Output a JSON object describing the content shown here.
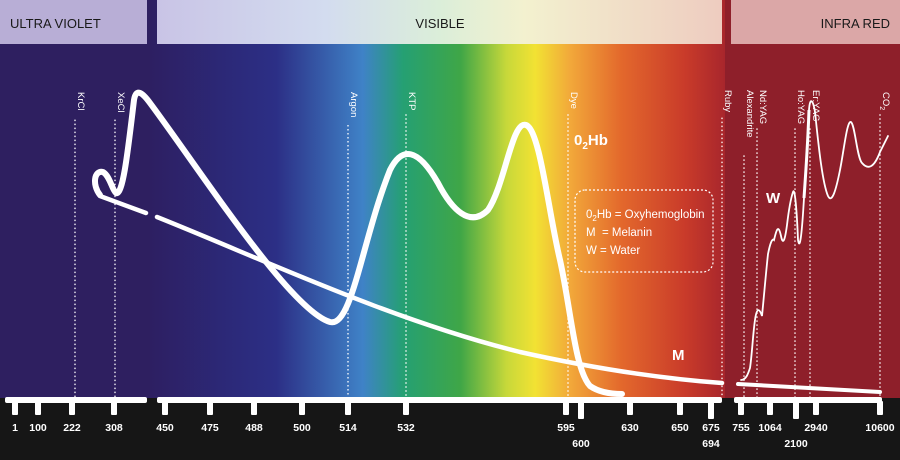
{
  "bands": [
    {
      "id": "uv",
      "label": "ULTRA VIOLET"
    },
    {
      "id": "visible",
      "label": "VISIBLE"
    },
    {
      "id": "ir",
      "label": "INFRA RED"
    }
  ],
  "lasers": [
    {
      "label": "KrCl"
    },
    {
      "label": "XeCl"
    },
    {
      "label": "Argon"
    },
    {
      "label": "KTP"
    },
    {
      "label": "Dye"
    },
    {
      "label": "Ruby"
    },
    {
      "label": "Alexandrite"
    },
    {
      "label": "Nd:YAG"
    },
    {
      "label": "Ho:YAG"
    },
    {
      "label": "Er:YAG"
    },
    {
      "label": "CO2"
    }
  ],
  "axis_ticks": [
    {
      "label": "1",
      "row": 1
    },
    {
      "label": "100",
      "row": 1
    },
    {
      "label": "222",
      "row": 1
    },
    {
      "label": "308",
      "row": 1
    },
    {
      "label": "450",
      "row": 1
    },
    {
      "label": "475",
      "row": 1
    },
    {
      "label": "488",
      "row": 1
    },
    {
      "label": "500",
      "row": 1
    },
    {
      "label": "514",
      "row": 1
    },
    {
      "label": "532",
      "row": 1
    },
    {
      "label": "595",
      "row": 1
    },
    {
      "label": "600",
      "row": 2
    },
    {
      "label": "630",
      "row": 1
    },
    {
      "label": "650",
      "row": 1
    },
    {
      "label": "675",
      "row": 1
    },
    {
      "label": "694",
      "row": 2
    },
    {
      "label": "755",
      "row": 1
    },
    {
      "label": "1064",
      "row": 1
    },
    {
      "label": "2100",
      "row": 2
    },
    {
      "label": "2940",
      "row": 1
    },
    {
      "label": "10600",
      "row": 1
    }
  ],
  "curves": {
    "o2hb": {
      "label_main": "0",
      "label_sub": "2",
      "label_tail": "Hb"
    },
    "melanin": {
      "label": "M"
    },
    "water": {
      "label": "W"
    }
  },
  "legend": {
    "line1_main": "0",
    "line1_sub": "2",
    "line1_tail": "Hb = Oxyhemoglobin",
    "line2": "M  = Melanin",
    "line3": "W = Water"
  },
  "colors": {
    "uv_bg": "#2e1f60",
    "ir_bg": "#8e1f2a",
    "uv_band": "#b8aed6",
    "ir_band": "#dba7a7",
    "axis_bg": "#161616",
    "curve": "#ffffff"
  }
}
